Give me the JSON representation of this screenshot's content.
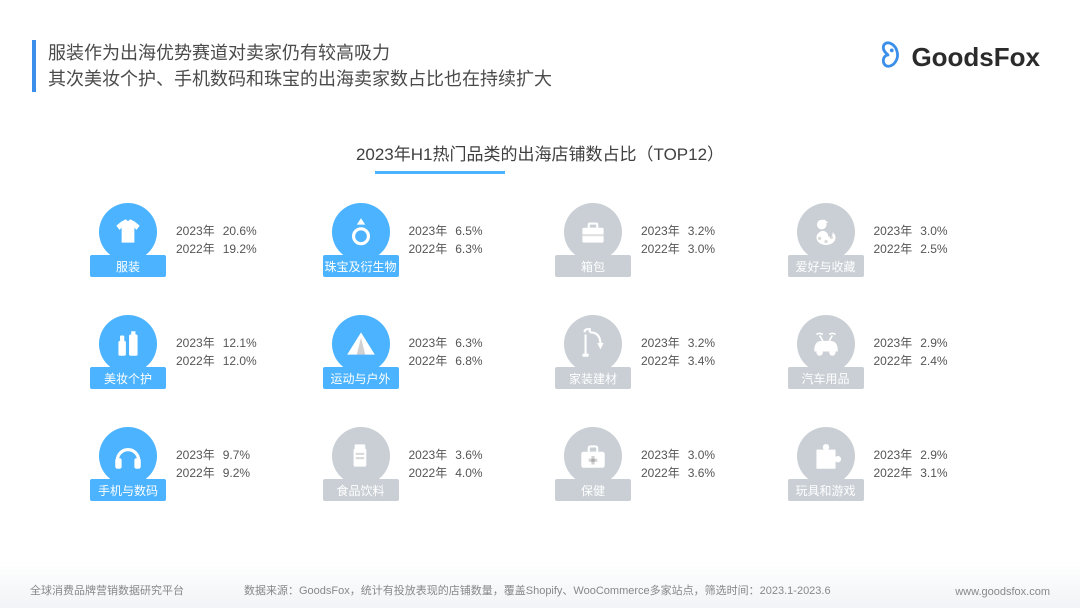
{
  "header": {
    "title_line1": "服装作为出海优势赛道对卖家仍有较高吸力",
    "title_line2": "其次美妆个护、手机数码和珠宝的出海卖家数占比也在持续扩大",
    "accent_color": "#3b8eea",
    "title_color": "#4a4a4a"
  },
  "logo": {
    "text": "GoodsFox",
    "icon_color": "#3b8eea"
  },
  "chart": {
    "title": "2023年H1热门品类的出海店铺数占比（TOP12）",
    "underline_color": "#4bb3ff"
  },
  "palette": {
    "highlight_bg": "#4bb3ff",
    "highlight_icon": "#ffffff",
    "muted_bg": "#c9cfd4",
    "muted_icon": "#ffffff",
    "stat_text": "#555555"
  },
  "year_labels": {
    "y2023": "2023年",
    "y2022": "2022年"
  },
  "categories": [
    {
      "name": "服装",
      "icon": "tshirt",
      "highlight": true,
      "v2023": "20.6%",
      "v2022": "19.2%"
    },
    {
      "name": "珠宝及衍生物",
      "icon": "ring",
      "highlight": true,
      "v2023": "6.5%",
      "v2022": "6.3%"
    },
    {
      "name": "箱包",
      "icon": "briefcase",
      "highlight": false,
      "v2023": "3.2%",
      "v2022": "3.0%"
    },
    {
      "name": "爱好与收藏",
      "icon": "palette",
      "highlight": false,
      "v2023": "3.0%",
      "v2022": "2.5%"
    },
    {
      "name": "美妆个护",
      "icon": "cosmetics",
      "highlight": true,
      "v2023": "12.1%",
      "v2022": "12.0%"
    },
    {
      "name": "运动与户外",
      "icon": "tent",
      "highlight": true,
      "v2023": "6.3%",
      "v2022": "6.8%"
    },
    {
      "name": "家装建材",
      "icon": "lamp",
      "highlight": false,
      "v2023": "3.2%",
      "v2022": "3.4%"
    },
    {
      "name": "汽车用品",
      "icon": "car",
      "highlight": false,
      "v2023": "2.9%",
      "v2022": "2.4%"
    },
    {
      "name": "手机与数码",
      "icon": "headphones",
      "highlight": true,
      "v2023": "9.7%",
      "v2022": "9.2%"
    },
    {
      "name": "食品饮料",
      "icon": "cup",
      "highlight": false,
      "v2023": "3.6%",
      "v2022": "4.0%"
    },
    {
      "name": "保健",
      "icon": "medkit",
      "highlight": false,
      "v2023": "3.0%",
      "v2022": "3.6%"
    },
    {
      "name": "玩具和游戏",
      "icon": "puzzle",
      "highlight": false,
      "v2023": "2.9%",
      "v2022": "3.1%"
    }
  ],
  "footer": {
    "left": "全球消费品牌营销数据研究平台",
    "mid": "数据来源：GoodsFox，统计有投放表现的店铺数量，覆盖Shopify、WooCommerce多家站点，筛选时间：2023.1-2023.6",
    "right": "www.goodsfox.com"
  }
}
